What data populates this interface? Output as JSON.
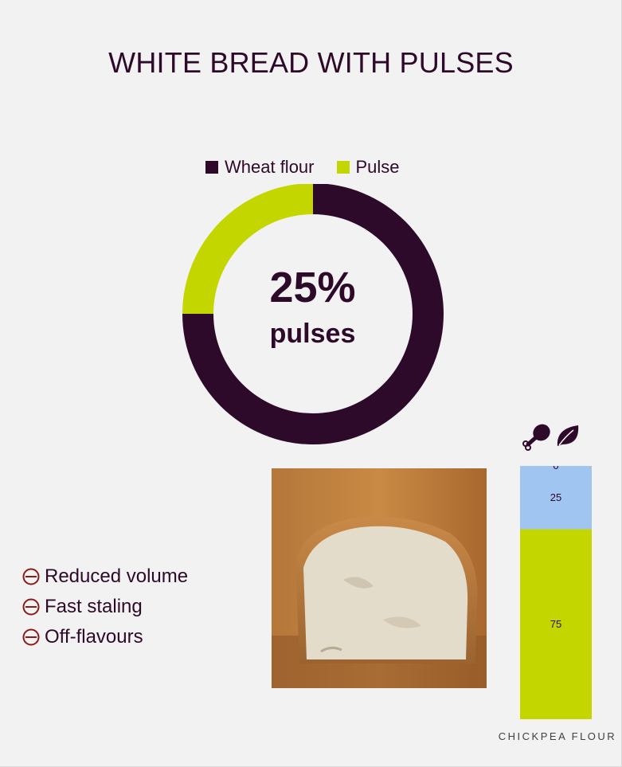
{
  "title": "WHITE BREAD WITH PULSES",
  "colors": {
    "wheat": "#2e0a2a",
    "pulse": "#c4d600",
    "meat_share": "#9fc5f0",
    "minus": "#8b1a1a"
  },
  "chart_data": [
    {
      "type": "pie",
      "variant": "donut",
      "legend": [
        "Wheat flour",
        "Pulse"
      ],
      "legend_position": "top",
      "slices": [
        {
          "label": "Wheat flour",
          "value": 75
        },
        {
          "label": "Pulse",
          "value": 25
        }
      ],
      "center_value": "25%",
      "center_label": "pulses"
    },
    {
      "type": "bar",
      "stacked": true,
      "categories": [
        "CHICKPEA FLOUR"
      ],
      "icons": [
        "meat-drumstick-icon",
        "leaf-icon"
      ],
      "segments": [
        {
          "value": 75,
          "color": "#c4d600"
        },
        {
          "value": 25,
          "color": "#9fc5f0"
        },
        {
          "value": 0,
          "color": "#9fc5f0"
        }
      ]
    }
  ],
  "effects": [
    "Reduced volume",
    "Fast staling",
    "Off-flavours"
  ]
}
